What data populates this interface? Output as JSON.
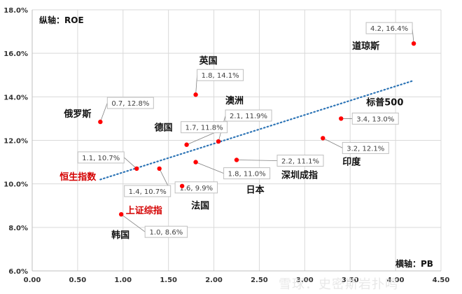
{
  "chart_data": {
    "type": "scatter",
    "y_axis_label": "纵轴：ROE",
    "x_axis_label": "横轴：PB",
    "xlim": [
      0,
      4.5
    ],
    "ylim": [
      6,
      18
    ],
    "x_ticks": [
      "0.00",
      "0.50",
      "1.00",
      "1.50",
      "2.00",
      "2.50",
      "3.00",
      "3.50",
      "4.00",
      "4.50"
    ],
    "y_ticks": [
      "6.0%",
      "8.0%",
      "10.0%",
      "12.0%",
      "14.0%",
      "16.0%",
      "18.0%"
    ],
    "grid": true,
    "trendline": {
      "style": "dotted",
      "color": "#2e75b6",
      "from": [
        0.75,
        10.2
      ],
      "to": [
        4.2,
        14.75
      ]
    },
    "points": [
      {
        "name": "道琼斯",
        "x": 4.2,
        "y": 16.45,
        "label": "4.2, 16.4%",
        "highlight": false
      },
      {
        "name": "英国",
        "x": 1.8,
        "y": 14.1,
        "label": "1.8, 14.1%",
        "highlight": false
      },
      {
        "name": "标普500",
        "x": 3.4,
        "y": 13.0,
        "label": "3.4, 13.0%",
        "highlight": false
      },
      {
        "name": "俄罗斯",
        "x": 0.75,
        "y": 12.85,
        "label": "0.7, 12.8%",
        "highlight": false
      },
      {
        "name": "印度",
        "x": 3.2,
        "y": 12.1,
        "label": "3.2, 12.1%",
        "highlight": false
      },
      {
        "name": "澳洲",
        "x": 2.05,
        "y": 11.95,
        "label": "2.1, 11.9%",
        "highlight": false
      },
      {
        "name": "德国",
        "x": 1.7,
        "y": 11.8,
        "label": "1.7, 11.8%",
        "highlight": false
      },
      {
        "name": "深圳成指",
        "x": 2.25,
        "y": 11.1,
        "label": "2.2, 11.1%",
        "highlight": false
      },
      {
        "name": "日本",
        "x": 1.8,
        "y": 11.0,
        "label": "1.8, 11.0%",
        "highlight": false
      },
      {
        "name": "恒生指数",
        "x": 1.15,
        "y": 10.7,
        "label": "1.1, 10.7%",
        "highlight": true
      },
      {
        "name": "上证综指",
        "x": 1.4,
        "y": 10.7,
        "label": "1.4, 10.7%",
        "highlight": true
      },
      {
        "name": "法国",
        "x": 1.65,
        "y": 9.9,
        "label": "1.6, 9.9%",
        "highlight": false
      },
      {
        "name": "韩国",
        "x": 0.98,
        "y": 8.6,
        "label": "1.0, 8.6%",
        "highlight": false
      }
    ]
  },
  "watermark": "雪球：史密斯岩扑鸣",
  "colors": {
    "point": "#ff0000",
    "trend": "#2e75b6",
    "highlight_text": "#d40000"
  }
}
